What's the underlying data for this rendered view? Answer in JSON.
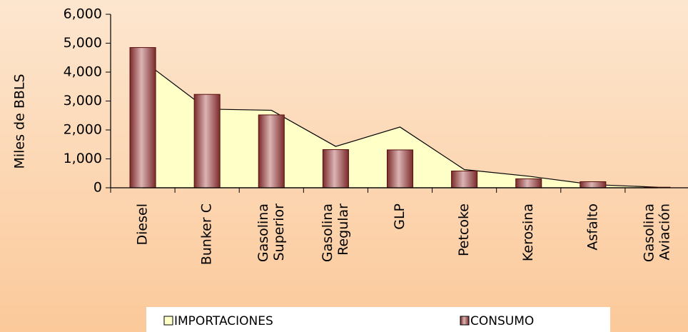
{
  "chart_data": {
    "type": "bar_area",
    "ylabel": "Miles de BBLS",
    "categories": [
      [
        "Diesel"
      ],
      [
        "Bunker C"
      ],
      [
        "Gasolina",
        "Superior"
      ],
      [
        "Gasolina",
        "Regular"
      ],
      [
        "GLP"
      ],
      [
        "Petcoke"
      ],
      [
        "Kerosina"
      ],
      [
        "Asfalto"
      ],
      [
        "Gasolina",
        "Aviación"
      ]
    ],
    "series": [
      {
        "name": "IMPORTACIONES",
        "kind": "area",
        "color": "#ffffc8",
        "values": [
          4400,
          2720,
          2680,
          1430,
          2100,
          630,
          400,
          110,
          20
        ]
      },
      {
        "name": "CONSUMO",
        "kind": "bar",
        "color": "#a85a5a",
        "values": [
          4850,
          3230,
          2520,
          1320,
          1310,
          580,
          310,
          210,
          20
        ]
      }
    ],
    "ylim": [
      0,
      6000
    ],
    "yticks": [
      0,
      {
        "value": 1000,
        "label": "1,000"
      },
      {
        "value": 2000,
        "label": "2,000"
      },
      {
        "value": 3000,
        "label": "3,000"
      },
      {
        "value": 4000,
        "label": "4,000"
      },
      {
        "value": 5000,
        "label": "5,000"
      },
      {
        "value": 6000,
        "label": "6,000"
      }
    ],
    "grid": false
  }
}
